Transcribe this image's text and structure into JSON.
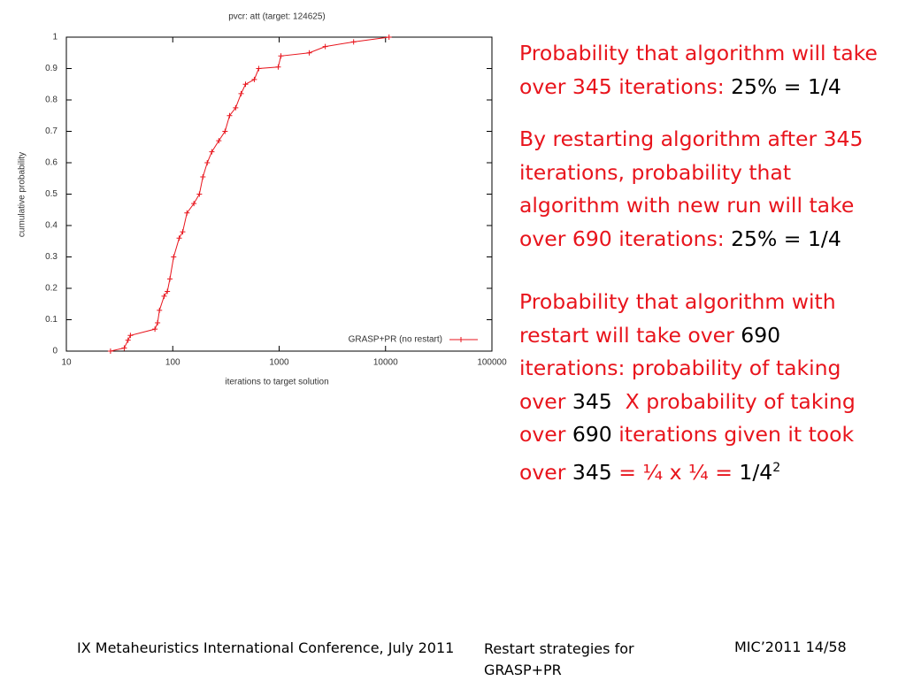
{
  "chart_data": {
    "type": "line",
    "title": "pvcr: att (target: 124625)",
    "x_label": "iterations to target solution",
    "y_label": "cumulative probability",
    "log_x": true,
    "legend_position": "lower right",
    "xlim": [
      10,
      100000
    ],
    "xticks": [
      10,
      100,
      1000,
      10000,
      100000
    ],
    "ylim": [
      0,
      1
    ],
    "yticks": [
      0,
      0.1,
      0.2,
      0.3,
      0.4,
      0.5,
      0.6,
      0.7,
      0.8,
      0.9,
      1
    ],
    "series": [
      {
        "name": "GRASP+PR (no restart)",
        "color": "#e8141c",
        "x": [
          26,
          35,
          38,
          40,
          68,
          72,
          75,
          83,
          89,
          94,
          102,
          115,
          124,
          136,
          158,
          178,
          192,
          211,
          233,
          271,
          310,
          342,
          390,
          439,
          483,
          584,
          643,
          980,
          1039,
          1920,
          2714,
          5012,
          10790
        ],
        "values": [
          0,
          0.01,
          0.035,
          0.05,
          0.07,
          0.09,
          0.13,
          0.175,
          0.19,
          0.23,
          0.3,
          0.36,
          0.38,
          0.44,
          0.47,
          0.5,
          0.555,
          0.6,
          0.635,
          0.67,
          0.7,
          0.75,
          0.775,
          0.82,
          0.85,
          0.865,
          0.9,
          0.905,
          0.94,
          0.95,
          0.97,
          0.985,
          1
        ]
      }
    ]
  },
  "text": {
    "blocks": [
      {
        "runs": [
          {
            "text": "Probability that algorithm will take over 345 iterations: ",
            "color": "#e8141c"
          },
          {
            "text": "25% = 1/4",
            "color": "#000000"
          }
        ]
      },
      {
        "runs": [
          {
            "text": "By restarting algorithm after 345 iterations, probability that algorithm with new run will take over 690 iterations: ",
            "color": "#e8141c"
          },
          {
            "text": "25% = 1/4",
            "color": "#000000"
          }
        ]
      },
      {
        "runs": [
          {
            "text": "Probability that algorithm with restart will take over ",
            "color": "#e8141c"
          },
          {
            "text": "690",
            "color": "#000000"
          },
          {
            "text": " iterations: probability of taking over ",
            "color": "#e8141c"
          },
          {
            "text": "345",
            "color": "#000000"
          },
          {
            "text": "  X probability of taking over ",
            "color": "#e8141c"
          },
          {
            "text": "690",
            "color": "#000000"
          },
          {
            "text": " iterations given it took over ",
            "color": "#e8141c"
          },
          {
            "text": "345",
            "color": "#000000"
          },
          {
            "text": " = ¼ x ¼ = ",
            "color": "#e8141c"
          },
          {
            "text": "1/4",
            "color": "#000000"
          },
          {
            "text": "2",
            "color": "#000000",
            "sup": true
          }
        ]
      }
    ]
  },
  "footer": {
    "conference": "IX Metaheuristics International Conference, July 2011",
    "topic": "Restart strategies for GRASP+PR",
    "page": "MIC’2011 14/58"
  }
}
